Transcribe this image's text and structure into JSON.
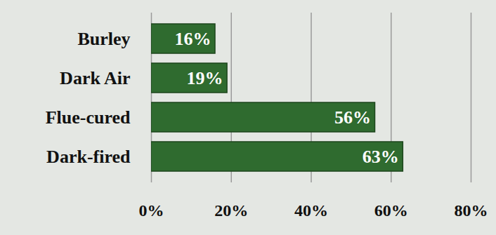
{
  "chart_data": {
    "type": "bar",
    "orientation": "horizontal",
    "categories": [
      "Burley",
      "Dark Air",
      "Flue-cured",
      "Dark-fired"
    ],
    "values": [
      16,
      19,
      56,
      63
    ],
    "value_labels": [
      "16%",
      "19%",
      "56%",
      "63%"
    ],
    "data_labels": true,
    "color": "#2f6b2f",
    "xlim": [
      0,
      80
    ],
    "xticks": [
      {
        "value": 0,
        "label": "0%"
      },
      {
        "value": 20,
        "label": "20%"
      },
      {
        "value": 40,
        "label": "40%"
      },
      {
        "value": 60,
        "label": "60%"
      },
      {
        "value": 80,
        "label": "80%"
      }
    ],
    "grid": true
  }
}
